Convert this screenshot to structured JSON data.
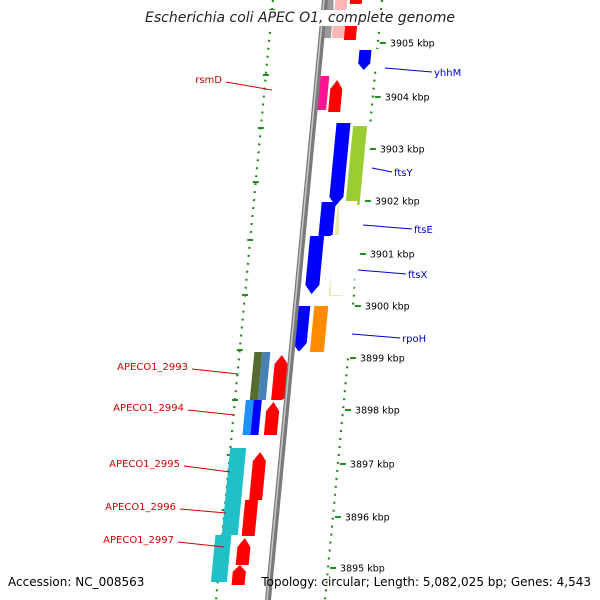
{
  "title": "Escherichia coli APEC O1, complete genome",
  "accession": "Accession: NC_008563",
  "summary": "Topology: circular; Length: 5,082,025 bp; Genes: 4,543",
  "colors": {
    "backbone": "#808080",
    "ruler": "#228b22",
    "label_forward": "#d40000",
    "label_reverse": "#0000cc",
    "feature_red": "#ff0000",
    "feature_blue": "#0000ff"
  },
  "ticks": [
    "3905 kbp",
    "3904 kbp",
    "3903 kbp",
    "3902 kbp",
    "3901 kbp",
    "3900 kbp",
    "3899 kbp",
    "3898 kbp",
    "3897 kbp",
    "3896 kbp",
    "3895 kbp"
  ],
  "labels_right": [
    "yhhM",
    "ftsY",
    "ftsE",
    "ftsX",
    "rpoH"
  ],
  "labels_left": [
    "rsmD",
    "APECO1_2993",
    "APECO1_2994",
    "APECO1_2995",
    "APECO1_2996",
    "APECO1_2997"
  ]
}
